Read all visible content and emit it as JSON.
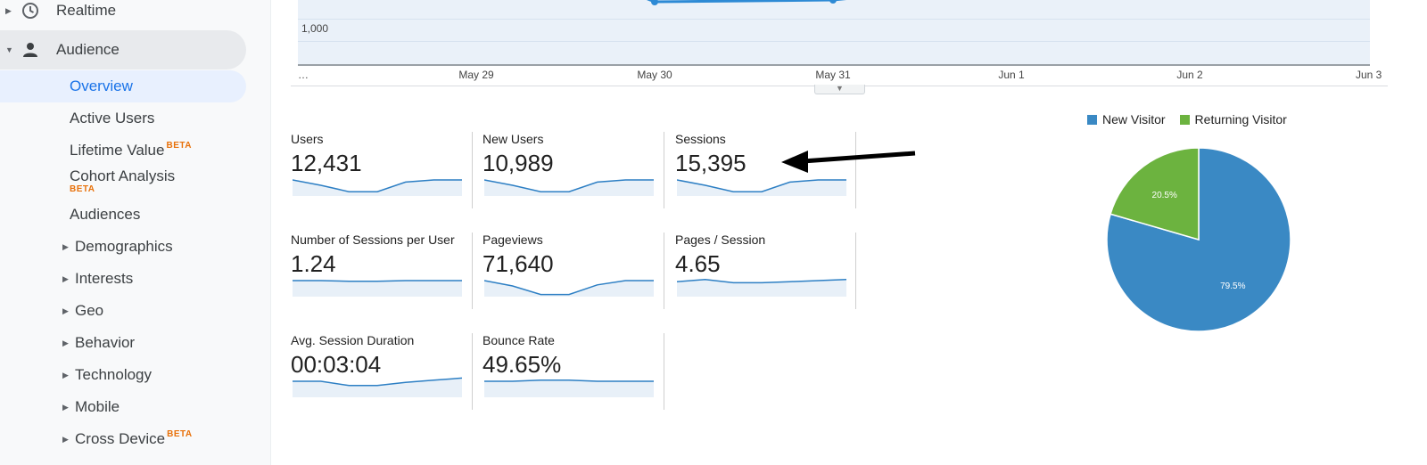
{
  "sidebar": {
    "realtime": {
      "label": "Realtime",
      "icon": "clock-icon"
    },
    "audience": {
      "label": "Audience",
      "icon": "person-icon"
    },
    "subitems": [
      {
        "label": "Overview",
        "selected": true
      },
      {
        "label": "Active Users"
      },
      {
        "label": "Lifetime Value",
        "badge": "BETA"
      },
      {
        "label": "Cohort Analysis",
        "badge": "BETA"
      },
      {
        "label": "Audiences"
      }
    ],
    "expandable": [
      {
        "label": "Demographics"
      },
      {
        "label": "Interests"
      },
      {
        "label": "Geo"
      },
      {
        "label": "Behavior"
      },
      {
        "label": "Technology"
      },
      {
        "label": "Mobile"
      },
      {
        "label": "Cross Device",
        "badge": "BETA"
      }
    ]
  },
  "line_chart": {
    "y_tick": "1,000",
    "x_ticks": [
      "…",
      "May 29",
      "May 30",
      "May 31",
      "Jun 1",
      "Jun 2",
      "Jun 3"
    ],
    "line_color": "#2d8ad5",
    "fill_color": "#eaf1f9"
  },
  "metrics": [
    {
      "label": "Users",
      "value": "12,431",
      "spark": [
        0.75,
        0.5,
        0.2,
        0.2,
        0.65,
        0.75,
        0.75
      ]
    },
    {
      "label": "New Users",
      "value": "10,989",
      "spark": [
        0.75,
        0.5,
        0.2,
        0.2,
        0.65,
        0.75,
        0.75
      ]
    },
    {
      "label": "Sessions",
      "value": "15,395",
      "spark": [
        0.75,
        0.5,
        0.2,
        0.2,
        0.65,
        0.75,
        0.75
      ]
    },
    {
      "label": "Number of Sessions per User",
      "value": "1.24",
      "spark": [
        0.75,
        0.75,
        0.72,
        0.72,
        0.75,
        0.75,
        0.75
      ]
    },
    {
      "label": "Pageviews",
      "value": "71,640",
      "spark": [
        0.75,
        0.5,
        0.1,
        0.1,
        0.55,
        0.75,
        0.75
      ]
    },
    {
      "label": "Pages / Session",
      "value": "4.65",
      "spark": [
        0.7,
        0.8,
        0.65,
        0.65,
        0.7,
        0.75,
        0.8
      ]
    },
    {
      "label": "Avg. Session Duration",
      "value": "00:03:04",
      "spark": [
        0.75,
        0.75,
        0.55,
        0.55,
        0.7,
        0.8,
        0.9
      ]
    },
    {
      "label": "Bounce Rate",
      "value": "49.65%",
      "spark": [
        0.75,
        0.75,
        0.8,
        0.8,
        0.75,
        0.75,
        0.75
      ]
    }
  ],
  "chart_data": {
    "type": "pie",
    "categories": [
      "New Visitor",
      "Returning Visitor"
    ],
    "values": [
      79.5,
      20.5
    ],
    "labels": [
      "79.5%",
      "20.5%"
    ],
    "colors": [
      "#3a89c4",
      "#6cb33f"
    ],
    "legend": "top"
  }
}
